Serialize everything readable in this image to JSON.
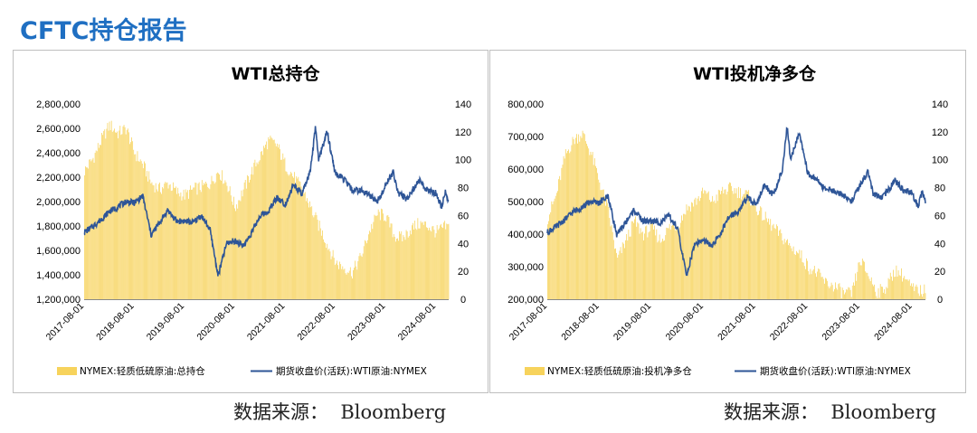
{
  "page": {
    "title": "CFTC持仓报告"
  },
  "sources": {
    "left": "数据来源：  Bloomberg",
    "right": "数据来源：  Bloomberg"
  },
  "colors": {
    "bar": "#f7d35c",
    "line": "#2e5597",
    "title": "#1f6fc2"
  },
  "chart_data": [
    {
      "type": "bar+line",
      "title": "WTI总持仓",
      "x_ticks": [
        "2017-08-01",
        "2018-08-01",
        "2019-08-01",
        "2020-08-01",
        "2021-08-01",
        "2022-08-01",
        "2023-08-01",
        "2024-08-01"
      ],
      "x_range": [
        "2017-08-01",
        "2024-11-01"
      ],
      "y_left": {
        "min": 1200000,
        "max": 2800000,
        "ticks": [
          "1,200,000",
          "1,400,000",
          "1,600,000",
          "1,800,000",
          "2,000,000",
          "2,200,000",
          "2,400,000",
          "2,600,000",
          "2,800,000"
        ]
      },
      "y_right": {
        "min": 0,
        "max": 140,
        "ticks": [
          "0",
          "20",
          "40",
          "60",
          "80",
          "100",
          "120",
          "140"
        ]
      },
      "bar_series": {
        "name": "NYMEX:轻质低硫原油:总持仓",
        "points": [
          [
            "2017-08-01",
            2250000
          ],
          [
            "2017-10-01",
            2350000
          ],
          [
            "2017-12-01",
            2500000
          ],
          [
            "2018-02-01",
            2630000
          ],
          [
            "2018-04-01",
            2560000
          ],
          [
            "2018-06-01",
            2600000
          ],
          [
            "2018-08-01",
            2400000
          ],
          [
            "2018-10-01",
            2300000
          ],
          [
            "2018-12-01",
            2150000
          ],
          [
            "2019-02-01",
            2100000
          ],
          [
            "2019-04-01",
            2150000
          ],
          [
            "2019-06-01",
            2080000
          ],
          [
            "2019-08-01",
            2050000
          ],
          [
            "2019-10-01",
            2100000
          ],
          [
            "2019-12-01",
            2120000
          ],
          [
            "2020-02-01",
            2150000
          ],
          [
            "2020-04-01",
            2250000
          ],
          [
            "2020-06-01",
            2150000
          ],
          [
            "2020-08-01",
            1950000
          ],
          [
            "2020-10-01",
            2100000
          ],
          [
            "2020-12-01",
            2250000
          ],
          [
            "2021-02-01",
            2380000
          ],
          [
            "2021-04-01",
            2500000
          ],
          [
            "2021-06-01",
            2460000
          ],
          [
            "2021-08-01",
            2300000
          ],
          [
            "2021-10-01",
            2200000
          ],
          [
            "2021-12-01",
            2100000
          ],
          [
            "2022-02-01",
            1950000
          ],
          [
            "2022-04-01",
            1800000
          ],
          [
            "2022-06-01",
            1650000
          ],
          [
            "2022-08-01",
            1500000
          ],
          [
            "2022-10-01",
            1460000
          ],
          [
            "2022-12-01",
            1420000
          ],
          [
            "2023-02-01",
            1550000
          ],
          [
            "2023-04-01",
            1750000
          ],
          [
            "2023-06-01",
            1900000
          ],
          [
            "2023-08-01",
            1880000
          ],
          [
            "2023-10-01",
            1720000
          ],
          [
            "2023-12-01",
            1700000
          ],
          [
            "2024-02-01",
            1780000
          ],
          [
            "2024-04-01",
            1820000
          ],
          [
            "2024-06-01",
            1800000
          ],
          [
            "2024-08-01",
            1750000
          ],
          [
            "2024-10-01",
            1790000
          ]
        ]
      },
      "line_series": {
        "name": "期货收盘价(活跃):WTI原油:NYMEX",
        "points": [
          [
            "2017-08-01",
            48
          ],
          [
            "2017-10-01",
            52
          ],
          [
            "2017-12-01",
            57
          ],
          [
            "2018-02-01",
            63
          ],
          [
            "2018-04-01",
            66
          ],
          [
            "2018-06-01",
            70
          ],
          [
            "2018-08-01",
            69
          ],
          [
            "2018-10-01",
            74
          ],
          [
            "2018-12-01",
            46
          ],
          [
            "2019-02-01",
            55
          ],
          [
            "2019-04-01",
            64
          ],
          [
            "2019-06-01",
            56
          ],
          [
            "2019-08-01",
            56
          ],
          [
            "2019-10-01",
            55
          ],
          [
            "2019-12-01",
            60
          ],
          [
            "2020-02-01",
            50
          ],
          [
            "2020-04-01",
            17
          ],
          [
            "2020-06-01",
            40
          ],
          [
            "2020-08-01",
            42
          ],
          [
            "2020-10-01",
            38
          ],
          [
            "2020-12-01",
            48
          ],
          [
            "2021-02-01",
            60
          ],
          [
            "2021-04-01",
            63
          ],
          [
            "2021-06-01",
            73
          ],
          [
            "2021-08-01",
            68
          ],
          [
            "2021-10-01",
            82
          ],
          [
            "2021-12-01",
            75
          ],
          [
            "2022-02-01",
            92
          ],
          [
            "2022-03-08",
            123
          ],
          [
            "2022-04-01",
            100
          ],
          [
            "2022-06-01",
            120
          ],
          [
            "2022-08-01",
            90
          ],
          [
            "2022-10-01",
            86
          ],
          [
            "2022-12-01",
            78
          ],
          [
            "2023-02-01",
            78
          ],
          [
            "2023-04-01",
            75
          ],
          [
            "2023-06-01",
            70
          ],
          [
            "2023-08-01",
            82
          ],
          [
            "2023-09-25",
            91
          ],
          [
            "2023-11-01",
            76
          ],
          [
            "2024-01-01",
            72
          ],
          [
            "2024-04-01",
            85
          ],
          [
            "2024-06-01",
            78
          ],
          [
            "2024-08-01",
            76
          ],
          [
            "2024-09-10",
            66
          ],
          [
            "2024-10-07",
            77
          ],
          [
            "2024-11-01",
            70
          ]
        ]
      }
    },
    {
      "type": "bar+line",
      "title": "WTI投机净多仓",
      "x_ticks": [
        "2017-08-01",
        "2018-08-01",
        "2019-08-01",
        "2020-08-01",
        "2021-08-01",
        "2022-08-01",
        "2023-08-01",
        "2024-08-01"
      ],
      "x_range": [
        "2017-08-01",
        "2024-11-01"
      ],
      "y_left": {
        "min": 200000,
        "max": 800000,
        "ticks": [
          "200,000",
          "300,000",
          "400,000",
          "500,000",
          "600,000",
          "700,000",
          "800,000"
        ]
      },
      "y_right": {
        "min": 0,
        "max": 140,
        "ticks": [
          "0",
          "20",
          "40",
          "60",
          "80",
          "100",
          "120",
          "140"
        ]
      },
      "bar_series": {
        "name": "NYMEX:轻质低硫原油:投机净多仓",
        "points": [
          [
            "2017-08-01",
            450000
          ],
          [
            "2017-10-01",
            520000
          ],
          [
            "2017-12-01",
            640000
          ],
          [
            "2018-02-01",
            690000
          ],
          [
            "2018-04-01",
            710000
          ],
          [
            "2018-06-01",
            650000
          ],
          [
            "2018-08-01",
            560000
          ],
          [
            "2018-10-01",
            470000
          ],
          [
            "2018-12-01",
            320000
          ],
          [
            "2019-02-01",
            380000
          ],
          [
            "2019-04-01",
            440000
          ],
          [
            "2019-06-01",
            400000
          ],
          [
            "2019-08-01",
            420000
          ],
          [
            "2019-10-01",
            380000
          ],
          [
            "2019-12-01",
            420000
          ],
          [
            "2020-02-01",
            430000
          ],
          [
            "2020-04-01",
            480000
          ],
          [
            "2020-06-01",
            500000
          ],
          [
            "2020-08-01",
            530000
          ],
          [
            "2020-10-01",
            500000
          ],
          [
            "2020-12-01",
            530000
          ],
          [
            "2021-02-01",
            540000
          ],
          [
            "2021-04-01",
            530000
          ],
          [
            "2021-06-01",
            520000
          ],
          [
            "2021-08-01",
            480000
          ],
          [
            "2021-10-01",
            450000
          ],
          [
            "2021-12-01",
            420000
          ],
          [
            "2022-02-01",
            390000
          ],
          [
            "2022-04-01",
            360000
          ],
          [
            "2022-06-01",
            340000
          ],
          [
            "2022-08-01",
            300000
          ],
          [
            "2022-10-01",
            280000
          ],
          [
            "2022-12-01",
            250000
          ],
          [
            "2023-02-01",
            240000
          ],
          [
            "2023-04-01",
            220000
          ],
          [
            "2023-06-01",
            215000
          ],
          [
            "2023-08-01",
            320000
          ],
          [
            "2023-10-01",
            270000
          ],
          [
            "2023-12-01",
            220000
          ],
          [
            "2024-02-01",
            240000
          ],
          [
            "2024-04-01",
            290000
          ],
          [
            "2024-06-01",
            270000
          ],
          [
            "2024-08-01",
            230000
          ],
          [
            "2024-10-01",
            225000
          ]
        ]
      },
      "line_series": {
        "name": "期货收盘价(活跃):WTI原油:NYMEX",
        "points": [
          [
            "2017-08-01",
            48
          ],
          [
            "2017-10-01",
            52
          ],
          [
            "2017-12-01",
            57
          ],
          [
            "2018-02-01",
            63
          ],
          [
            "2018-04-01",
            66
          ],
          [
            "2018-06-01",
            70
          ],
          [
            "2018-08-01",
            69
          ],
          [
            "2018-10-01",
            74
          ],
          [
            "2018-12-01",
            46
          ],
          [
            "2019-02-01",
            55
          ],
          [
            "2019-04-01",
            64
          ],
          [
            "2019-06-01",
            56
          ],
          [
            "2019-08-01",
            56
          ],
          [
            "2019-10-01",
            55
          ],
          [
            "2019-12-01",
            60
          ],
          [
            "2020-02-01",
            50
          ],
          [
            "2020-04-01",
            17
          ],
          [
            "2020-06-01",
            40
          ],
          [
            "2020-08-01",
            42
          ],
          [
            "2020-10-01",
            38
          ],
          [
            "2020-12-01",
            48
          ],
          [
            "2021-02-01",
            60
          ],
          [
            "2021-04-01",
            63
          ],
          [
            "2021-06-01",
            73
          ],
          [
            "2021-08-01",
            68
          ],
          [
            "2021-10-01",
            82
          ],
          [
            "2021-12-01",
            75
          ],
          [
            "2022-02-01",
            92
          ],
          [
            "2022-03-08",
            123
          ],
          [
            "2022-04-01",
            100
          ],
          [
            "2022-06-01",
            120
          ],
          [
            "2022-08-01",
            90
          ],
          [
            "2022-10-01",
            86
          ],
          [
            "2022-12-01",
            78
          ],
          [
            "2023-02-01",
            78
          ],
          [
            "2023-04-01",
            75
          ],
          [
            "2023-06-01",
            70
          ],
          [
            "2023-08-01",
            82
          ],
          [
            "2023-09-25",
            91
          ],
          [
            "2023-11-01",
            76
          ],
          [
            "2024-01-01",
            72
          ],
          [
            "2024-04-01",
            85
          ],
          [
            "2024-06-01",
            78
          ],
          [
            "2024-08-01",
            76
          ],
          [
            "2024-09-10",
            66
          ],
          [
            "2024-10-07",
            77
          ],
          [
            "2024-11-01",
            70
          ]
        ]
      }
    }
  ]
}
